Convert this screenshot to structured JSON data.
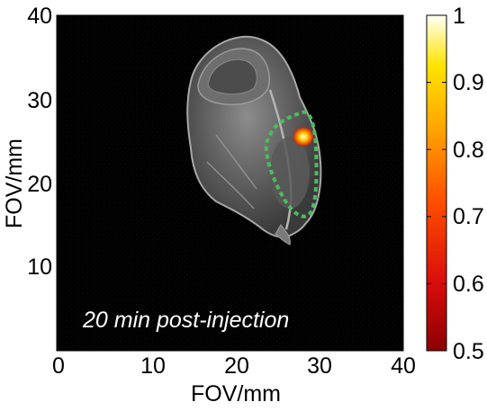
{
  "image": {
    "x_axis": {
      "label": "FOV/mm",
      "ticks": [
        "0",
        "10",
        "20",
        "30",
        "40"
      ],
      "range": [
        0,
        40
      ]
    },
    "y_axis": {
      "label": "FOV/mm",
      "ticks": [
        "10",
        "20",
        "30",
        "40"
      ],
      "range": [
        0,
        40
      ]
    },
    "annotation": "20 min post-injection",
    "colorbar": {
      "ticks": [
        "1",
        "0.9",
        "0.8",
        "0.7",
        "0.6",
        "0.5"
      ],
      "range": [
        0.5,
        1
      ],
      "colormap": "hot",
      "colors": [
        "#8b0000",
        "#e01010",
        "#ff5a00",
        "#ffa000",
        "#ffe000",
        "#fffff0"
      ]
    },
    "roi_color": "#4dbb5f",
    "background_color": "#000000"
  }
}
